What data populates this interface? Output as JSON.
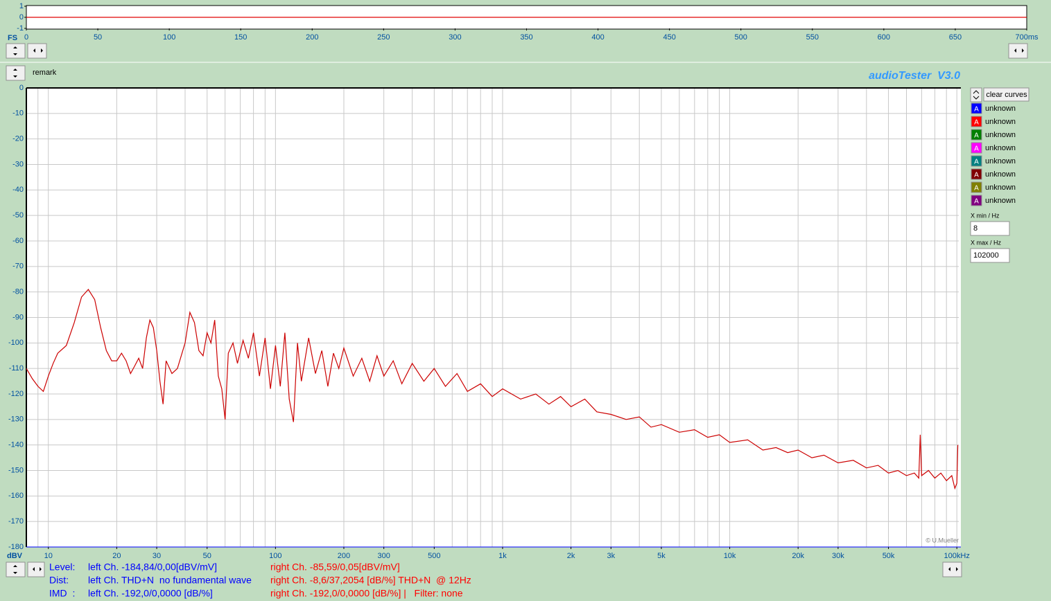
{
  "waveform": {
    "type": "line",
    "axis_label": "FS",
    "xlim": [
      0,
      700
    ],
    "ylim": [
      -1,
      1
    ],
    "xticks": [
      0,
      50,
      100,
      150,
      200,
      250,
      300,
      350,
      400,
      450,
      500,
      550,
      600,
      650,
      {
        "value": 700,
        "label": "700ms"
      }
    ],
    "yticks": [
      1,
      0,
      -1
    ],
    "series": [
      {
        "color": "#e00000",
        "x": [
          0,
          700
        ],
        "values": [
          0,
          0
        ]
      }
    ]
  },
  "header": {
    "remark": "remark",
    "brand": "audioTester  V3.0"
  },
  "spectrum": {
    "type": "line",
    "xscale": "log",
    "y_unit": "dBV",
    "credit": "© U.Mueller",
    "grid": true,
    "xlim": [
      8,
      102000
    ],
    "ylim": [
      -180,
      0
    ],
    "xticks": [
      10,
      20,
      30,
      50,
      100,
      200,
      300,
      500,
      {
        "value": 1000,
        "label": "1k"
      },
      {
        "value": 2000,
        "label": "2k"
      },
      {
        "value": 3000,
        "label": "3k"
      },
      {
        "value": 5000,
        "label": "5k"
      },
      {
        "value": 10000,
        "label": "10k"
      },
      {
        "value": 20000,
        "label": "20k"
      },
      {
        "value": 30000,
        "label": "30k"
      },
      {
        "value": 50000,
        "label": "50k"
      },
      {
        "value": 100000,
        "label": "100kHz"
      }
    ],
    "xgrid": [
      8,
      9,
      10,
      20,
      30,
      40,
      50,
      60,
      70,
      80,
      90,
      100,
      200,
      300,
      400,
      500,
      600,
      700,
      800,
      900,
      1000,
      2000,
      3000,
      4000,
      5000,
      6000,
      7000,
      8000,
      9000,
      10000,
      20000,
      30000,
      40000,
      50000,
      60000,
      70000,
      80000,
      90000,
      100000
    ],
    "yticks": [
      0,
      -10,
      -20,
      -30,
      -40,
      -50,
      -60,
      -70,
      -80,
      -90,
      -100,
      -110,
      -120,
      -130,
      -140,
      -150,
      -160,
      -170,
      -180
    ],
    "series": [
      {
        "color": "#cc0000",
        "x": [
          8,
          8.5,
          9,
          9.5,
          10,
          10.5,
          11,
          12,
          13,
          14,
          15,
          16,
          17,
          18,
          19,
          20,
          21,
          22,
          23,
          24,
          25,
          26,
          27,
          28,
          29,
          30,
          31,
          32,
          33,
          35,
          37,
          40,
          42,
          44,
          46,
          48,
          50,
          52,
          54,
          56,
          58,
          60,
          62,
          65,
          68,
          72,
          76,
          80,
          85,
          90,
          95,
          100,
          105,
          110,
          115,
          120,
          125,
          130,
          140,
          150,
          160,
          170,
          180,
          190,
          200,
          220,
          240,
          260,
          280,
          300,
          330,
          360,
          400,
          450,
          500,
          560,
          630,
          700,
          800,
          900,
          1000,
          1200,
          1400,
          1600,
          1800,
          2000,
          2300,
          2600,
          3000,
          3500,
          4000,
          4500,
          5000,
          6000,
          7000,
          8000,
          9000,
          10000,
          12000,
          14000,
          16000,
          18000,
          20000,
          23000,
          26000,
          30000,
          35000,
          40000,
          45000,
          50000,
          55000,
          60000,
          65000,
          68000,
          69000,
          70000,
          75000,
          80000,
          85000,
          90000,
          95000,
          98000,
          100000,
          101000
        ],
        "values": [
          -110,
          -114,
          -117,
          -119,
          -113,
          -108,
          -104,
          -101,
          -92,
          -82,
          -79,
          -83,
          -94,
          -103,
          -107,
          -107,
          -104,
          -107,
          -112,
          -109,
          -106,
          -110,
          -98,
          -91,
          -94,
          -103,
          -115,
          -124,
          -107,
          -112,
          -110,
          -100,
          -88,
          -92,
          -103,
          -105,
          -96,
          -100,
          -91,
          -113,
          -118,
          -130,
          -104,
          -100,
          -108,
          -99,
          -106,
          -96,
          -113,
          -98,
          -118,
          -101,
          -117,
          -96,
          -122,
          -131,
          -100,
          -115,
          -98,
          -112,
          -103,
          -117,
          -104,
          -110,
          -102,
          -113,
          -106,
          -115,
          -105,
          -113,
          -107,
          -116,
          -108,
          -115,
          -110,
          -117,
          -112,
          -119,
          -116,
          -121,
          -118,
          -122,
          -120,
          -124,
          -121,
          -125,
          -122,
          -127,
          -128,
          -130,
          -129,
          -133,
          -132,
          -135,
          -134,
          -137,
          -136,
          -139,
          -138,
          -142,
          -141,
          -143,
          -142,
          -145,
          -144,
          -147,
          -146,
          -149,
          -148,
          -151,
          -150,
          -152,
          -151,
          -153,
          -136,
          -152,
          -150,
          -153,
          -151,
          -154,
          -152,
          -157,
          -155,
          -140
        ]
      }
    ]
  },
  "panel": {
    "clear": "clear curves",
    "curves": [
      {
        "icon": "A",
        "label": "unknown",
        "color": "#0000ff"
      },
      {
        "icon": "A",
        "label": "unknown",
        "color": "#ff0000"
      },
      {
        "icon": "A",
        "label": "unknown",
        "color": "#008000"
      },
      {
        "icon": "A",
        "label": "unknown",
        "color": "#ff00ff"
      },
      {
        "icon": "A",
        "label": "unknown",
        "color": "#008080"
      },
      {
        "icon": "A",
        "label": "unknown",
        "color": "#800000"
      },
      {
        "icon": "A",
        "label": "unknown",
        "color": "#808000"
      },
      {
        "icon": "A",
        "label": "unknown",
        "color": "#800080"
      }
    ],
    "xmin_label": "X min / Hz",
    "xmin": "8",
    "xmax_label": "X max / Hz",
    "xmax": "102000"
  },
  "status": [
    {
      "label": "Level:",
      "left": "left Ch. -184,84/0,00[dBV/mV]",
      "right": "right Ch. -85,59/0,05[dBV/mV]"
    },
    {
      "label": "Dist:",
      "left": "left Ch. THD+N  no fundamental wave",
      "right": "right Ch. -8,6/37,2054 [dB/%] THD+N  @ 12Hz"
    },
    {
      "label": "IMD  :",
      "left": "left Ch. -192,0/0,0000 [dB/%]",
      "right": "right Ch. -192,0/0,0000 [dB/%] |   Filter: none"
    }
  ]
}
